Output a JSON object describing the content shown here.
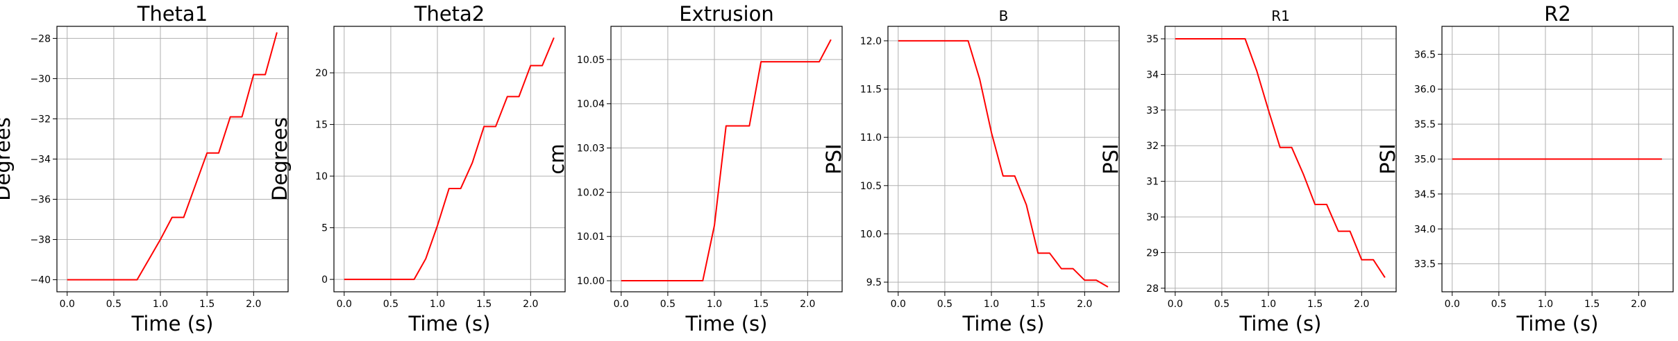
{
  "figure": {
    "line_color": "#ff0000",
    "grid_color": "#b0b0b0",
    "axis_color": "#000000"
  },
  "chart_data": [
    {
      "type": "line",
      "title": "Theta1",
      "xlabel": "Time (s)",
      "ylabel": "Degrees",
      "grid": true,
      "xlim": [
        -0.11,
        2.37
      ],
      "ylim": [
        -40.6,
        -27.4
      ],
      "xticks": [
        0.0,
        0.5,
        1.0,
        1.5,
        2.0
      ],
      "xtick_labels": [
        "0.0",
        "0.5",
        "1.0",
        "1.5",
        "2.0"
      ],
      "yticks": [
        -40,
        -38,
        -36,
        -34,
        -32,
        -30,
        -28
      ],
      "ytick_labels": [
        "−40",
        "−38",
        "−36",
        "−34",
        "−32",
        "−30",
        "−28"
      ],
      "series": [
        {
          "x": [
            0.0,
            0.75,
            0.875,
            1.0,
            1.125,
            1.25,
            1.375,
            1.5,
            1.625,
            1.75,
            1.875,
            2.0,
            2.125,
            2.25
          ],
          "y": [
            -40.0,
            -40.0,
            -39.0,
            -38.0,
            -36.9,
            -36.9,
            -35.3,
            -33.7,
            -33.7,
            -31.9,
            -31.9,
            -29.8,
            -29.8,
            -27.7
          ]
        }
      ]
    },
    {
      "type": "line",
      "title": "Theta2",
      "xlabel": "Time (s)",
      "ylabel": "Degrees",
      "grid": true,
      "xlim": [
        -0.11,
        2.37
      ],
      "ylim": [
        -1.2,
        24.5
      ],
      "xticks": [
        0.0,
        0.5,
        1.0,
        1.5,
        2.0
      ],
      "xtick_labels": [
        "0.0",
        "0.5",
        "1.0",
        "1.5",
        "2.0"
      ],
      "yticks": [
        0,
        5,
        10,
        15,
        20
      ],
      "ytick_labels": [
        "0",
        "5",
        "10",
        "15",
        "20"
      ],
      "series": [
        {
          "x": [
            0.0,
            0.75,
            0.875,
            1.0,
            1.125,
            1.25,
            1.375,
            1.5,
            1.625,
            1.75,
            1.875,
            2.0,
            2.125,
            2.25
          ],
          "y": [
            0.0,
            0.0,
            2.0,
            5.2,
            8.8,
            8.8,
            11.3,
            14.8,
            14.8,
            17.7,
            17.7,
            20.7,
            20.7,
            23.4
          ]
        }
      ]
    },
    {
      "type": "line",
      "title": "Extrusion",
      "xlabel": "Time (s)",
      "ylabel": "cm",
      "grid": true,
      "xlim": [
        -0.11,
        2.37
      ],
      "ylim": [
        9.9975,
        10.0575
      ],
      "xticks": [
        0.0,
        0.5,
        1.0,
        1.5,
        2.0
      ],
      "xtick_labels": [
        "0.0",
        "0.5",
        "1.0",
        "1.5",
        "2.0"
      ],
      "yticks": [
        10.0,
        10.01,
        10.02,
        10.03,
        10.04,
        10.05
      ],
      "ytick_labels": [
        "10.00",
        "10.01",
        "10.02",
        "10.03",
        "10.04",
        "10.05"
      ],
      "series": [
        {
          "x": [
            0.0,
            0.875,
            1.0,
            1.125,
            1.25,
            1.375,
            1.5,
            1.625,
            1.75,
            1.875,
            2.0,
            2.125,
            2.25
          ],
          "y": [
            10.0,
            10.0,
            10.0125,
            10.035,
            10.035,
            10.035,
            10.0495,
            10.0495,
            10.0495,
            10.0495,
            10.0495,
            10.0495,
            10.0545
          ]
        }
      ]
    },
    {
      "type": "line",
      "title": "B",
      "xlabel": "Time (s)",
      "ylabel": "PSI",
      "grid": true,
      "xlim": [
        -0.11,
        2.37
      ],
      "ylim": [
        9.4,
        12.15
      ],
      "xticks": [
        0.0,
        0.5,
        1.0,
        1.5,
        2.0
      ],
      "xtick_labels": [
        "0.0",
        "0.5",
        "1.0",
        "1.5",
        "2.0"
      ],
      "yticks": [
        9.5,
        10.0,
        10.5,
        11.0,
        11.5,
        12.0
      ],
      "ytick_labels": [
        "9.5",
        "10.0",
        "10.5",
        "11.0",
        "11.5",
        "12.0"
      ],
      "series": [
        {
          "x": [
            0.0,
            0.75,
            0.875,
            1.0,
            1.125,
            1.25,
            1.375,
            1.5,
            1.625,
            1.75,
            1.875,
            2.0,
            2.125,
            2.25
          ],
          "y": [
            12.0,
            12.0,
            11.6,
            11.05,
            10.6,
            10.6,
            10.3,
            9.8,
            9.8,
            9.64,
            9.64,
            9.52,
            9.52,
            9.45
          ]
        }
      ]
    },
    {
      "type": "line",
      "title": "R1",
      "xlabel": "Time (s)",
      "ylabel": "PSI",
      "grid": true,
      "xlim": [
        -0.11,
        2.37
      ],
      "ylim": [
        27.9,
        35.35
      ],
      "xticks": [
        0.0,
        0.5,
        1.0,
        1.5,
        2.0
      ],
      "xtick_labels": [
        "0.0",
        "0.5",
        "1.0",
        "1.5",
        "2.0"
      ],
      "yticks": [
        28,
        29,
        30,
        31,
        32,
        33,
        34,
        35
      ],
      "ytick_labels": [
        "28",
        "29",
        "30",
        "31",
        "32",
        "33",
        "34",
        "35"
      ],
      "series": [
        {
          "x": [
            0.0,
            0.75,
            0.875,
            1.0,
            1.125,
            1.25,
            1.375,
            1.5,
            1.625,
            1.75,
            1.875,
            2.0,
            2.125,
            2.25
          ],
          "y": [
            35.0,
            35.0,
            34.1,
            33.0,
            31.95,
            31.95,
            31.2,
            30.35,
            30.35,
            29.6,
            29.6,
            28.8,
            28.8,
            28.3
          ]
        }
      ]
    },
    {
      "type": "line",
      "title": "R2",
      "xlabel": "Time (s)",
      "ylabel": "PSI",
      "grid": true,
      "xlim": [
        -0.11,
        2.37
      ],
      "ylim": [
        33.1,
        36.9
      ],
      "xticks": [
        0.0,
        0.5,
        1.0,
        1.5,
        2.0
      ],
      "xtick_labels": [
        "0.0",
        "0.5",
        "1.0",
        "1.5",
        "2.0"
      ],
      "yticks": [
        33.5,
        34.0,
        34.5,
        35.0,
        35.5,
        36.0,
        36.5
      ],
      "ytick_labels": [
        "33.5",
        "34.0",
        "34.5",
        "35.0",
        "35.5",
        "36.0",
        "36.5"
      ],
      "series": [
        {
          "x": [
            0.0,
            2.25
          ],
          "y": [
            35.0,
            35.0
          ]
        }
      ]
    }
  ]
}
